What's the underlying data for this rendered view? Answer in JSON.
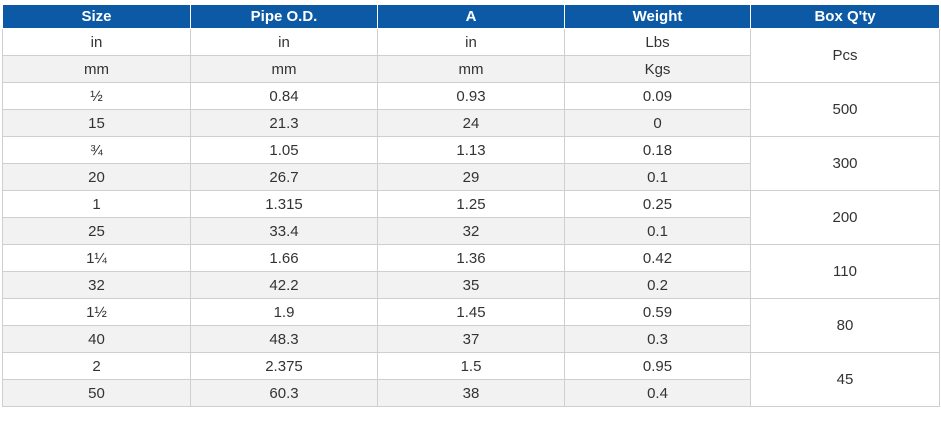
{
  "header": [
    "Size",
    "Pipe O.D.",
    "A",
    "Weight",
    "Box Q'ty"
  ],
  "unit_rows": [
    [
      "in",
      "in",
      "in",
      "Lbs"
    ],
    [
      "mm",
      "mm",
      "mm",
      "Kgs"
    ]
  ],
  "unit_box": "Pcs",
  "groups": [
    {
      "rows": [
        [
          "½",
          "0.84",
          "0.93",
          "0.09"
        ],
        [
          "15",
          "21.3",
          "24",
          "0"
        ]
      ],
      "box": "500"
    },
    {
      "rows": [
        [
          "¾",
          "1.05",
          "1.13",
          "0.18"
        ],
        [
          "20",
          "26.7",
          "29",
          "0.1"
        ]
      ],
      "box": "300"
    },
    {
      "rows": [
        [
          "1",
          "1.315",
          "1.25",
          "0.25"
        ],
        [
          "25",
          "33.4",
          "32",
          "0.1"
        ]
      ],
      "box": "200"
    },
    {
      "rows": [
        [
          "1¼",
          "1.66",
          "1.36",
          "0.42"
        ],
        [
          "32",
          "42.2",
          "35",
          "0.2"
        ]
      ],
      "box": "110"
    },
    {
      "rows": [
        [
          "1½",
          "1.9",
          "1.45",
          "0.59"
        ],
        [
          "40",
          "48.3",
          "37",
          "0.3"
        ]
      ],
      "box": "80"
    },
    {
      "rows": [
        [
          "2",
          "2.375",
          "1.5",
          "0.95"
        ],
        [
          "50",
          "60.3",
          "38",
          "0.4"
        ]
      ],
      "box": "45"
    }
  ],
  "colors": {
    "header_bg": "#0c59a6",
    "header_text": "#ffffff",
    "alt_row_bg": "#f2f2f2",
    "border": "#cfcfcf"
  }
}
